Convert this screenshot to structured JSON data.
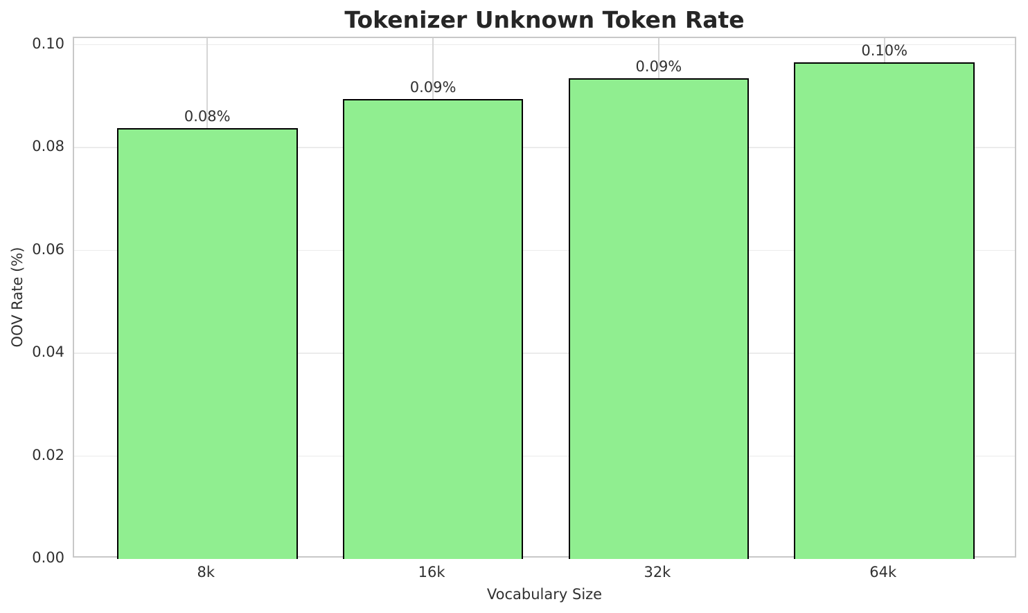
{
  "chart_data": {
    "type": "bar",
    "title": "Tokenizer Unknown Token Rate",
    "xlabel": "Vocabulary Size",
    "ylabel": "OOV Rate (%)",
    "categories": [
      "8k",
      "16k",
      "32k",
      "64k"
    ],
    "values": [
      0.0838,
      0.0894,
      0.0935,
      0.0966
    ],
    "bar_value_labels": [
      "0.08%",
      "0.09%",
      "0.09%",
      "0.10%"
    ],
    "yticks": {
      "values": [
        0.0,
        0.02,
        0.04,
        0.06,
        0.08,
        0.1
      ],
      "labels": [
        "0.00",
        "0.02",
        "0.04",
        "0.06",
        "0.08",
        "0.10"
      ]
    },
    "ylim": [
      0,
      0.1013
    ],
    "xlim": [
      -0.59,
      3.59
    ],
    "bar_width": 0.8,
    "grid": true,
    "legend": "none",
    "colors": {
      "bar_fill": "#90ee90",
      "bar_edge": "#000000",
      "grid_horizontal": "#ebebeb",
      "grid_vertical": "#d6d6d6",
      "spine": "#c8c8c8",
      "title_text": "#262626",
      "label_text": "#303030"
    }
  }
}
